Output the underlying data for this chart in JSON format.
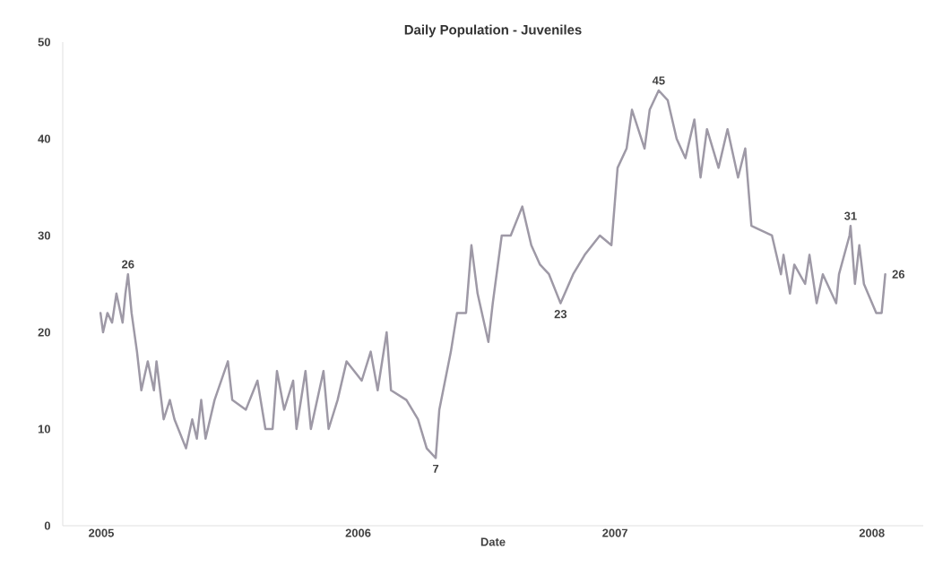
{
  "chart_data": {
    "type": "line",
    "title": "Daily Population - Juveniles",
    "xlabel": "Date",
    "x": [
      2004.997,
      2005.007,
      2005.024,
      2005.042,
      2005.059,
      2005.083,
      2005.094,
      2005.104,
      2005.118,
      2005.139,
      2005.156,
      2005.181,
      2005.205,
      2005.215,
      2005.243,
      2005.267,
      2005.285,
      2005.33,
      2005.354,
      2005.372,
      2005.389,
      2005.406,
      2005.441,
      2005.493,
      2005.51,
      2005.563,
      2005.608,
      2005.639,
      2005.667,
      2005.684,
      2005.712,
      2005.747,
      2005.76,
      2005.795,
      2005.816,
      2005.865,
      2005.885,
      2005.92,
      2005.955,
      2006.014,
      2006.049,
      2006.076,
      2006.111,
      2006.128,
      2006.188,
      2006.233,
      2006.267,
      2006.302,
      2006.316,
      2006.361,
      2006.385,
      2006.42,
      2006.441,
      2006.465,
      2006.507,
      2006.524,
      2006.559,
      2006.594,
      2006.639,
      2006.674,
      2006.708,
      2006.743,
      2006.788,
      2006.837,
      2006.882,
      2006.941,
      2006.986,
      2007.01,
      2007.045,
      2007.066,
      2007.115,
      2007.135,
      2007.17,
      2007.205,
      2007.24,
      2007.274,
      2007.309,
      2007.333,
      2007.358,
      2007.403,
      2007.438,
      2007.479,
      2007.507,
      2007.531,
      2007.611,
      2007.646,
      2007.656,
      2007.681,
      2007.698,
      2007.74,
      2007.757,
      2007.785,
      2007.809,
      2007.861,
      2007.872,
      2007.913,
      2007.917,
      2007.934,
      2007.951,
      2007.969,
      2008.017,
      2008.038,
      2008.052
    ],
    "values": [
      22,
      20,
      22,
      21,
      24,
      21,
      24,
      26,
      22,
      18,
      14,
      17,
      14,
      17,
      11,
      13,
      11,
      8,
      11,
      9,
      13,
      9,
      13,
      17,
      13,
      12,
      15,
      10,
      10,
      16,
      12,
      15,
      10,
      16,
      10,
      16,
      10,
      13,
      17,
      15,
      18,
      14,
      20,
      14,
      13,
      11,
      8,
      7,
      12,
      18,
      22,
      22,
      29,
      24,
      19,
      23,
      30,
      30,
      33,
      29,
      27,
      26,
      23,
      26,
      28,
      30,
      29,
      37,
      39,
      43,
      39,
      43,
      45,
      44,
      40,
      38,
      42,
      36,
      41,
      37,
      41,
      36,
      39,
      31,
      30,
      26,
      28,
      24,
      27,
      25,
      28,
      23,
      26,
      23,
      26,
      30,
      31,
      25,
      29,
      25,
      22,
      22,
      26
    ],
    "color": "#9e99a6",
    "xlim": [
      2004.85,
      2008.2
    ],
    "xticks": [
      2005,
      2006,
      2007,
      2008
    ],
    "ylim": [
      0,
      50
    ],
    "yticks": [
      0,
      10,
      20,
      30,
      40,
      50
    ],
    "annotations": [
      {
        "text": "26",
        "x": 2005.104,
        "y": 26
      },
      {
        "text": "7",
        "x": 2006.302,
        "y": 7
      },
      {
        "text": "23",
        "x": 2006.788,
        "y": 23
      },
      {
        "text": "45",
        "x": 2007.17,
        "y": 45
      },
      {
        "text": "31",
        "x": 2007.917,
        "y": 31
      },
      {
        "text": "26",
        "x": 2008.052,
        "y": 26
      }
    ]
  }
}
